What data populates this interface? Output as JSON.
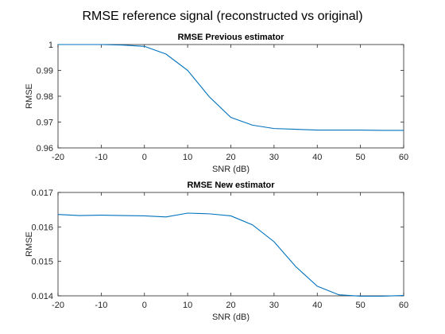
{
  "figure_title": "RMSE reference signal (reconstructed vs original)",
  "colors": {
    "line": "#0072BD",
    "axes": "#262626"
  },
  "chart_data": [
    {
      "type": "line",
      "title": "RMSE Previous estimator",
      "xlabel": "SNR (dB)",
      "ylabel": "RMSE",
      "xlim": [
        -20,
        60
      ],
      "ylim": [
        0.96,
        1
      ],
      "xticks": [
        -20,
        -10,
        0,
        10,
        20,
        30,
        40,
        50,
        60
      ],
      "yticks": [
        0.96,
        0.97,
        0.98,
        0.99,
        1
      ],
      "xtick_labels": [
        "-20",
        "-10",
        "0",
        "10",
        "20",
        "30",
        "40",
        "50",
        "60"
      ],
      "ytick_labels": [
        "0.96",
        "0.97",
        "0.98",
        "0.99",
        "1"
      ],
      "grid": false,
      "series": [
        {
          "x": [
            -20,
            -15,
            -10,
            -5,
            0,
            5,
            10,
            15,
            20,
            25,
            30,
            35,
            40,
            45,
            50,
            55,
            60
          ],
          "y": [
            1.0,
            1.0,
            1.0,
            0.9998,
            0.9993,
            0.9963,
            0.99,
            0.9798,
            0.9718,
            0.9688,
            0.9675,
            0.9672,
            0.9669,
            0.9669,
            0.9669,
            0.9668,
            0.9668
          ]
        }
      ]
    },
    {
      "type": "line",
      "title": "RMSE New estimator",
      "xlabel": "SNR (dB)",
      "ylabel": "RMSE",
      "xlim": [
        -20,
        60
      ],
      "ylim": [
        0.014,
        0.017
      ],
      "xticks": [
        -20,
        -10,
        0,
        10,
        20,
        30,
        40,
        50,
        60
      ],
      "yticks": [
        0.014,
        0.015,
        0.016,
        0.017
      ],
      "xtick_labels": [
        "-20",
        "-10",
        "0",
        "10",
        "20",
        "30",
        "40",
        "50",
        "60"
      ],
      "ytick_labels": [
        "0.014",
        "0.015",
        "0.016",
        "0.017"
      ],
      "grid": false,
      "series": [
        {
          "x": [
            -20,
            -15,
            -10,
            -5,
            0,
            5,
            10,
            15,
            20,
            25,
            30,
            35,
            40,
            45,
            50,
            55,
            60
          ],
          "y": [
            0.01636,
            0.01633,
            0.01634,
            0.01633,
            0.01632,
            0.01629,
            0.0164,
            0.01638,
            0.01632,
            0.01606,
            0.01557,
            0.01485,
            0.01428,
            0.01403,
            0.01399,
            0.01399,
            0.01401
          ]
        }
      ]
    }
  ]
}
